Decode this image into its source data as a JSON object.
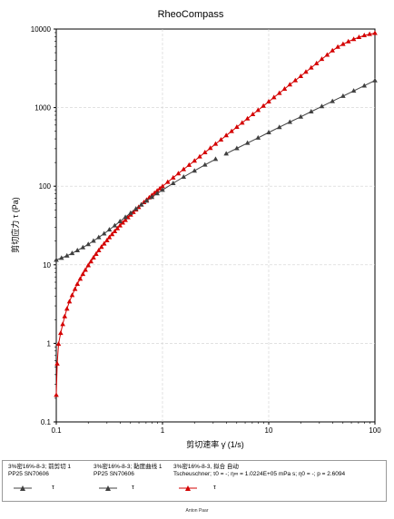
{
  "chart_data": {
    "type": "line",
    "title": "RheoCompass",
    "xlabel": "剪切速率 γ̇ (1/s)",
    "ylabel": "剪切应力 τ (Pa)",
    "xscale": "log",
    "yscale": "log",
    "xlim": [
      0.1,
      100
    ],
    "ylim": [
      0.1,
      10000
    ],
    "xticks": [
      "0.1",
      "1",
      "10",
      "100"
    ],
    "yticks": [
      "0.1",
      "1",
      "10",
      "100",
      "1000",
      "10000"
    ],
    "grid": true,
    "series": [
      {
        "name": "τ",
        "legend_label": "3%密16%-8-3; 前剪切 1",
        "legend_sub": "PP25 SN70606",
        "color": "#404040",
        "x": [
          0.1,
          0.112,
          0.126,
          0.141,
          0.158,
          0.178,
          0.2,
          0.224,
          0.251,
          0.282,
          0.316,
          0.355,
          0.398,
          0.447,
          0.501,
          0.562,
          0.631,
          0.708,
          0.794,
          0.891,
          1.0,
          1.26,
          1.58,
          2.0,
          2.51,
          3.16
        ],
        "y": [
          11.5,
          12.2,
          13.0,
          14.0,
          15.2,
          16.6,
          18.2,
          20.1,
          22.3,
          24.9,
          28.0,
          31.5,
          35.6,
          40.3,
          45.6,
          51.5,
          58.0,
          65.0,
          72.6,
          80.8,
          89.5,
          109,
          131,
          157,
          187,
          221
        ]
      },
      {
        "name": "τ",
        "legend_label": "3%密16%-8-3; 黏度曲线 1",
        "legend_sub": "PP25 SN70606",
        "color": "#404040",
        "x": [
          3.98,
          5.01,
          6.31,
          7.94,
          10.0,
          12.6,
          15.8,
          20.0,
          25.1,
          31.6,
          39.8,
          50.1,
          63.1,
          79.4,
          100
        ],
        "y": [
          259,
          303,
          354,
          413,
          482,
          563,
          655,
          763,
          889,
          1035,
          1205,
          1403,
          1633,
          1901,
          2213
        ]
      },
      {
        "name": "τ",
        "legend_label": "3%密16%-8-3, 拟合 自动",
        "legend_sub": "Tscheuschner; τ0 = -; η∞ = 1.0224E+05 mPa s; η0 = -; p = 2.6094",
        "color": "#d40000",
        "x": [
          0.1,
          0.102,
          0.105,
          0.11,
          0.115,
          0.12,
          0.126,
          0.133,
          0.141,
          0.15,
          0.158,
          0.168,
          0.178,
          0.188,
          0.2,
          0.212,
          0.224,
          0.237,
          0.251,
          0.266,
          0.282,
          0.3,
          0.316,
          0.335,
          0.355,
          0.376,
          0.398,
          0.422,
          0.447,
          0.473,
          0.501,
          0.531,
          0.562,
          0.596,
          0.631,
          0.668,
          0.708,
          0.75,
          0.794,
          0.841,
          0.891,
          0.944,
          1.0,
          1.12,
          1.26,
          1.41,
          1.58,
          1.78,
          2.0,
          2.24,
          2.51,
          2.82,
          3.16,
          3.55,
          3.98,
          4.47,
          5.01,
          5.62,
          6.31,
          7.08,
          7.94,
          8.91,
          10.0,
          11.2,
          12.6,
          14.1,
          15.8,
          17.8,
          20.0,
          22.4,
          25.1,
          28.2,
          31.6,
          35.5,
          39.8,
          44.7,
          50.1,
          56.2,
          63.1,
          70.8,
          79.4,
          89.1,
          100
        ],
        "y": [
          0.22,
          0.55,
          0.98,
          1.35,
          1.75,
          2.2,
          2.75,
          3.4,
          4.1,
          4.9,
          5.7,
          6.6,
          7.6,
          8.6,
          9.8,
          11.0,
          12.3,
          13.7,
          15.2,
          16.8,
          18.5,
          20.4,
          22.3,
          24.4,
          26.6,
          29.0,
          31.5,
          34.2,
          37.0,
          40.0,
          43.2,
          46.6,
          50.2,
          54.0,
          58.0,
          62.3,
          66.8,
          71.6,
          76.6,
          81.9,
          87.5,
          93.4,
          99.6,
          113,
          128,
          145,
          164,
          186,
          210,
          238,
          269,
          305,
          345,
          390,
          442,
          500,
          566,
          640,
          725,
          821,
          929,
          1050,
          1190,
          1350,
          1530,
          1730,
          1960,
          2220,
          2510,
          2850,
          3220,
          3650,
          4140,
          4690,
          5310,
          5910,
          6420,
          6930,
          7420,
          7880,
          8290,
          8620,
          8860
        ]
      }
    ]
  },
  "legend_symbol": "τ",
  "footer": "Anton Paar"
}
